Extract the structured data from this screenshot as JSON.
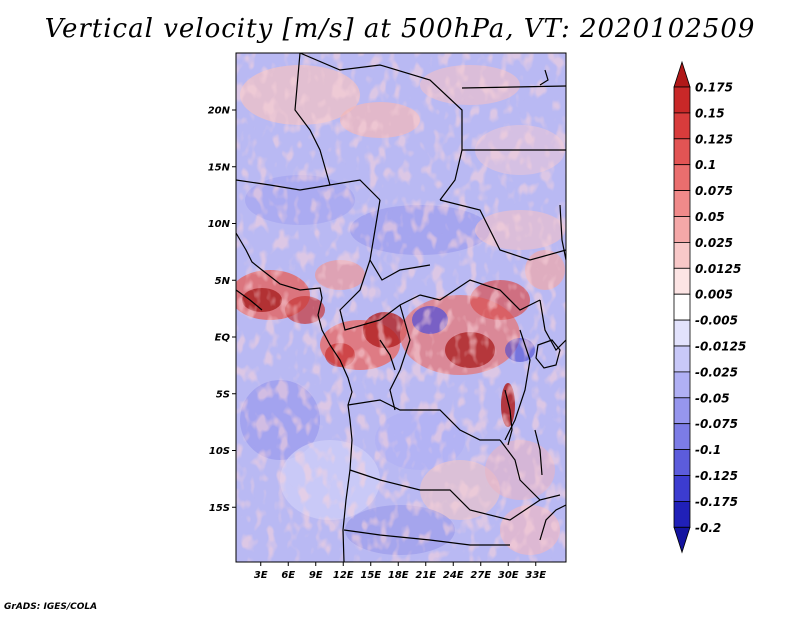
{
  "title": "Vertical velocity [m/s] at 500hPa, VT: 2020102509",
  "credit": "GrADS: IGES/COLA",
  "map": {
    "lon_range": [
      0,
      36
    ],
    "lat_range": [
      -20,
      25
    ],
    "lat_ticks": [
      {
        "lat": 20,
        "label": "20N"
      },
      {
        "lat": 15,
        "label": "15N"
      },
      {
        "lat": 10,
        "label": "10N"
      },
      {
        "lat": 5,
        "label": "5N"
      },
      {
        "lat": 0,
        "label": "EQ"
      },
      {
        "lat": -5,
        "label": "5S"
      },
      {
        "lat": -10,
        "label": "10S"
      },
      {
        "lat": -15,
        "label": "15S"
      }
    ],
    "lon_ticks": [
      {
        "lon": 3,
        "label": "3E"
      },
      {
        "lon": 6,
        "label": "6E"
      },
      {
        "lon": 9,
        "label": "9E"
      },
      {
        "lon": 12,
        "label": "12E"
      },
      {
        "lon": 15,
        "label": "15E"
      },
      {
        "lon": 18,
        "label": "18E"
      },
      {
        "lon": 21,
        "label": "21E"
      },
      {
        "lon": 24,
        "label": "24E"
      },
      {
        "lon": 27,
        "label": "27E"
      },
      {
        "lon": 30,
        "label": "30E"
      },
      {
        "lon": 33,
        "label": "33E"
      }
    ],
    "field_colors": {
      "strong_up": "#a01818",
      "up": "#e06060",
      "weak_up": "#f4b8b8",
      "neutral": "#ffffff",
      "weak_down": "#c8c8f8",
      "down": "#8c8cf0"
    }
  },
  "colorbar": {
    "levels": [
      "0.175",
      "0.15",
      "0.125",
      "0.1",
      "0.075",
      "0.05",
      "0.025",
      "0.0125",
      "0.005",
      "-0.005",
      "-0.0125",
      "-0.025",
      "-0.05",
      "-0.075",
      "-0.1",
      "-0.125",
      "-0.175",
      "-0.2"
    ],
    "colors": [
      "#b01818",
      "#c82828",
      "#d83c3c",
      "#e25454",
      "#ea6e6e",
      "#f08a8a",
      "#f5a8a8",
      "#f8c8c8",
      "#fce4e4",
      "#ffffff",
      "#e2e2fc",
      "#c8c8f8",
      "#b0b0f4",
      "#9696ee",
      "#7c7ce6",
      "#5c5cdc",
      "#3c3cd0",
      "#2020b8",
      "#1414a0"
    ]
  }
}
